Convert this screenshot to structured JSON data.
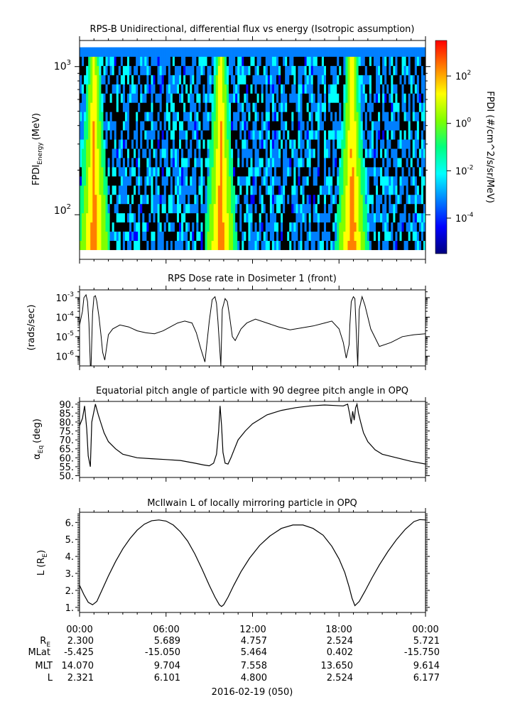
{
  "colors": {
    "background": "#ffffff",
    "axis": "#000000",
    "colormap": [
      "#00007f",
      "#0000ff",
      "#007fff",
      "#00ffff",
      "#00ff7f",
      "#7fff00",
      "#ffff00",
      "#ff7f00",
      "#ff0000"
    ]
  },
  "chart_data": [
    {
      "type": "heatmap",
      "title": "RPS-B  Unidirectional, differential flux vs energy (Isotropic assumption)",
      "ylabel": "FPDI",
      "ylabel_sub": "Energy",
      "ylabel_unit": "(MeV)",
      "yscale": "log",
      "ylim": [
        50,
        1500
      ],
      "y_ticks": [
        {
          "base": "10",
          "exp": "2",
          "value": 100
        },
        {
          "base": "10",
          "exp": "3",
          "value": 1000
        }
      ],
      "energy_range": [
        58,
        1350
      ],
      "x_hours": [
        0,
        24
      ],
      "peak_times_hours": [
        1.0,
        9.8,
        18.9
      ],
      "colorbar": {
        "label": "FPDI (#/cm^2/s/sr/MeV)",
        "scale": "log",
        "range_exp": [
          -5.5,
          3.5
        ],
        "ticks": [
          {
            "base": "10",
            "exp": "-4",
            "value_exp": -4
          },
          {
            "base": "10",
            "exp": "-2",
            "value_exp": -2
          },
          {
            "base": "10",
            "exp": "0",
            "value_exp": 0
          },
          {
            "base": "10",
            "exp": "2",
            "value_exp": 2
          }
        ]
      }
    },
    {
      "type": "line",
      "title": "RPS  Dose rate in Dosimeter 1 (front)",
      "ylabel": "(rads/sec)",
      "yscale": "log",
      "ylim_exp": [
        -6.5,
        -2.6
      ],
      "y_ticks": [
        {
          "base": "10",
          "exp": "-6",
          "value_exp": -6
        },
        {
          "base": "10",
          "exp": "-5",
          "value_exp": -5
        },
        {
          "base": "10",
          "exp": "-4",
          "value_exp": -4
        },
        {
          "base": "10",
          "exp": "-3",
          "value_exp": -3
        }
      ],
      "x_hours": [
        0.0,
        0.2,
        0.3,
        0.45,
        0.55,
        0.65,
        0.75,
        0.8,
        0.9,
        1.0,
        1.1,
        1.2,
        1.35,
        1.5,
        1.6,
        1.75,
        2.0,
        2.3,
        2.8,
        3.4,
        4.0,
        4.6,
        5.2,
        5.8,
        6.3,
        6.8,
        7.3,
        7.8,
        8.1,
        8.4,
        8.7,
        9.0,
        9.2,
        9.4,
        9.5,
        9.6,
        9.8,
        9.9,
        10.1,
        10.25,
        10.4,
        10.6,
        10.8,
        11.0,
        11.2,
        11.6,
        12.2,
        13.0,
        13.8,
        14.6,
        15.4,
        16.2,
        17.0,
        17.5,
        18.0,
        18.3,
        18.5,
        18.7,
        18.75,
        18.85,
        19.0,
        19.1,
        19.3,
        19.4,
        19.6,
        19.8,
        20.2,
        20.8,
        21.6,
        22.4,
        23.2,
        24.0
      ],
      "y_exp": [
        -4.4,
        -3.7,
        -3.0,
        -2.85,
        -3.2,
        -4.3,
        -6.5,
        -6.5,
        -3.8,
        -2.95,
        -2.9,
        -3.2,
        -4.0,
        -5.0,
        -5.8,
        -6.2,
        -4.9,
        -4.6,
        -4.4,
        -4.5,
        -4.7,
        -4.8,
        -4.85,
        -4.7,
        -4.5,
        -4.3,
        -4.2,
        -4.3,
        -4.8,
        -5.6,
        -6.3,
        -4.2,
        -3.1,
        -2.95,
        -3.3,
        -4.2,
        -6.5,
        -3.6,
        -3.05,
        -3.2,
        -3.9,
        -5.0,
        -5.2,
        -4.9,
        -4.6,
        -4.3,
        -4.1,
        -4.3,
        -4.5,
        -4.65,
        -4.55,
        -4.45,
        -4.3,
        -4.2,
        -4.6,
        -5.3,
        -6.1,
        -5.4,
        -4.4,
        -3.2,
        -2.95,
        -3.05,
        -6.5,
        -3.6,
        -2.95,
        -3.4,
        -4.6,
        -5.5,
        -5.3,
        -5.0,
        -4.9,
        -4.85
      ]
    },
    {
      "type": "line",
      "title": "Equatorial pitch angle of particle with 90 degree pitch angle in OPQ",
      "ylabel": "α",
      "ylabel_sub": "Eq",
      "ylabel_unit": "(deg)",
      "ylim": [
        49,
        91.5
      ],
      "y_ticks": [
        50,
        55,
        60,
        65,
        70,
        75,
        80,
        85,
        90
      ],
      "x_hours": [
        0.0,
        0.2,
        0.35,
        0.5,
        0.6,
        0.75,
        0.85,
        1.0,
        1.1,
        1.3,
        1.5,
        1.7,
        2.0,
        2.5,
        3.0,
        4.0,
        5.0,
        6.0,
        7.0,
        8.0,
        8.6,
        9.0,
        9.3,
        9.5,
        9.65,
        9.75,
        9.85,
        9.95,
        10.1,
        10.3,
        10.5,
        10.7,
        11.0,
        11.5,
        12.0,
        12.5,
        13.0,
        14.0,
        15.0,
        16.0,
        17.0,
        17.8,
        18.3,
        18.6,
        18.75,
        18.85,
        18.95,
        19.05,
        19.15,
        19.25,
        19.35,
        19.5,
        19.7,
        20.0,
        20.5,
        21.0,
        22.0,
        23.0,
        24.0
      ],
      "y": [
        78.0,
        82.0,
        89.0,
        76.0,
        61.0,
        55.0,
        80.0,
        86.0,
        90.0,
        84.0,
        79.0,
        74.0,
        69.0,
        65.0,
        62.0,
        60.0,
        59.5,
        59.0,
        58.5,
        57.0,
        56.0,
        55.5,
        57.0,
        62.0,
        75.0,
        89.0,
        78.0,
        63.0,
        57.0,
        56.5,
        60.0,
        64.0,
        70.0,
        75.0,
        79.0,
        81.5,
        84.0,
        86.5,
        88.0,
        89.0,
        89.5,
        89.2,
        89.0,
        90.0,
        84.0,
        79.0,
        86.0,
        81.0,
        88.0,
        90.0,
        85.0,
        80.0,
        74.0,
        69.0,
        64.5,
        62.0,
        60.0,
        58.0,
        56.5
      ]
    },
    {
      "type": "line",
      "title": "McIlwain L of locally mirroring particle in OPQ",
      "ylabel": "L (R",
      "ylabel_sub": "E",
      "ylabel_unit": ")",
      "ylim": [
        0.7,
        6.6
      ],
      "y_ticks": [
        1,
        2,
        3,
        4,
        5,
        6
      ],
      "x_hours": [
        0.0,
        0.3,
        0.6,
        0.9,
        1.2,
        1.6,
        2.0,
        2.5,
        3.0,
        3.5,
        4.0,
        4.5,
        5.0,
        5.5,
        6.0,
        6.5,
        7.0,
        7.5,
        8.0,
        8.5,
        9.0,
        9.4,
        9.7,
        9.85,
        10.0,
        10.3,
        10.7,
        11.2,
        11.8,
        12.5,
        13.2,
        14.0,
        14.8,
        15.5,
        16.2,
        16.9,
        17.5,
        18.0,
        18.4,
        18.7,
        18.9,
        19.1,
        19.4,
        19.8,
        20.3,
        20.8,
        21.4,
        22.0,
        22.6,
        23.2,
        23.6,
        24.0
      ],
      "y": [
        2.3,
        1.75,
        1.3,
        1.15,
        1.35,
        2.1,
        2.85,
        3.7,
        4.45,
        5.05,
        5.55,
        5.9,
        6.1,
        6.15,
        6.08,
        5.85,
        5.45,
        4.9,
        4.15,
        3.25,
        2.3,
        1.6,
        1.15,
        1.05,
        1.15,
        1.6,
        2.3,
        3.1,
        3.9,
        4.65,
        5.2,
        5.65,
        5.85,
        5.85,
        5.65,
        5.25,
        4.6,
        3.85,
        3.05,
        2.2,
        1.55,
        1.1,
        1.35,
        1.95,
        2.75,
        3.5,
        4.3,
        5.0,
        5.6,
        6.05,
        6.17,
        6.15
      ]
    }
  ],
  "x_axis": {
    "tick_hours": [
      0,
      6,
      12,
      18,
      24
    ],
    "tick_labels": [
      "00:00",
      "06:00",
      "12:00",
      "18:00",
      "00:00"
    ],
    "date_label": "2016-02-19 (050)"
  },
  "ephemeris": {
    "rows": [
      {
        "label": "R",
        "label_sub": "E",
        "values": [
          "2.300",
          "5.689",
          "4.757",
          "2.524",
          "5.721"
        ]
      },
      {
        "label": "MLat",
        "label_sub": "",
        "values": [
          "-5.425",
          "-15.050",
          "5.464",
          "0.402",
          "-15.750"
        ]
      },
      {
        "label": "MLT",
        "label_sub": "",
        "values": [
          "14.070",
          "9.704",
          "7.558",
          "13.650",
          "9.614"
        ]
      },
      {
        "label": "L",
        "label_sub": "",
        "values": [
          "2.321",
          "6.101",
          "4.800",
          "2.524",
          "6.177"
        ]
      }
    ]
  }
}
